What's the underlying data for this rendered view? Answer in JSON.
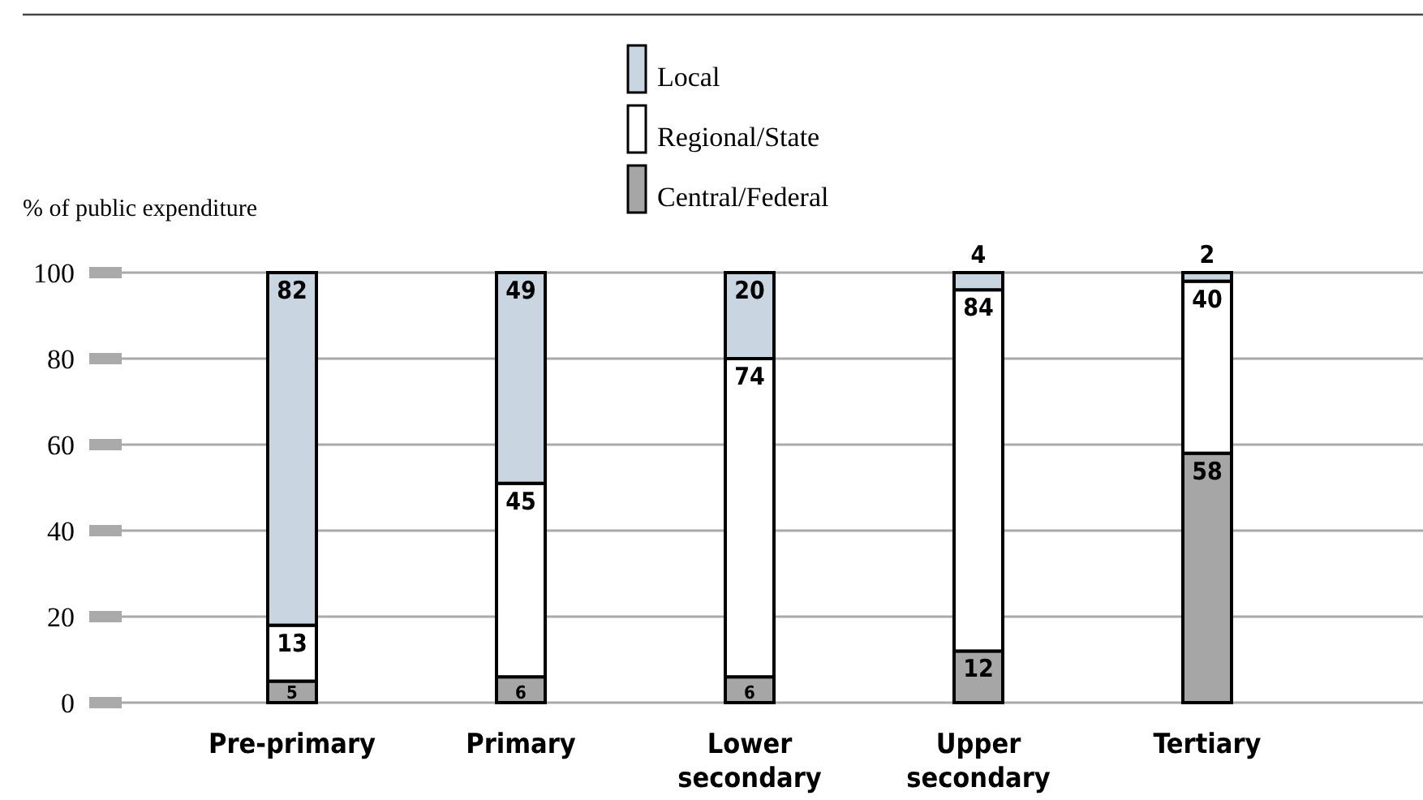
{
  "chart_data": {
    "type": "bar",
    "stacked": true,
    "ylabel": "% of public expenditure",
    "categories": [
      "Pre-primary",
      "Primary",
      "Lower secondary",
      "Upper secondary",
      "Tertiary"
    ],
    "series": [
      {
        "name": "Central/Federal",
        "color": "#a6a6a6",
        "values": [
          5,
          6,
          6,
          12,
          58
        ]
      },
      {
        "name": "Regional/State",
        "color": "#ffffff",
        "values": [
          13,
          45,
          74,
          84,
          40
        ]
      },
      {
        "name": "Local",
        "color": "#c9d5e1",
        "values": [
          82,
          49,
          20,
          4,
          2
        ]
      }
    ],
    "ylim": [
      0,
      100
    ],
    "yticks": [
      0,
      20,
      40,
      60,
      80,
      100
    ],
    "grid": "y",
    "legend": "top",
    "data_labels": true
  }
}
